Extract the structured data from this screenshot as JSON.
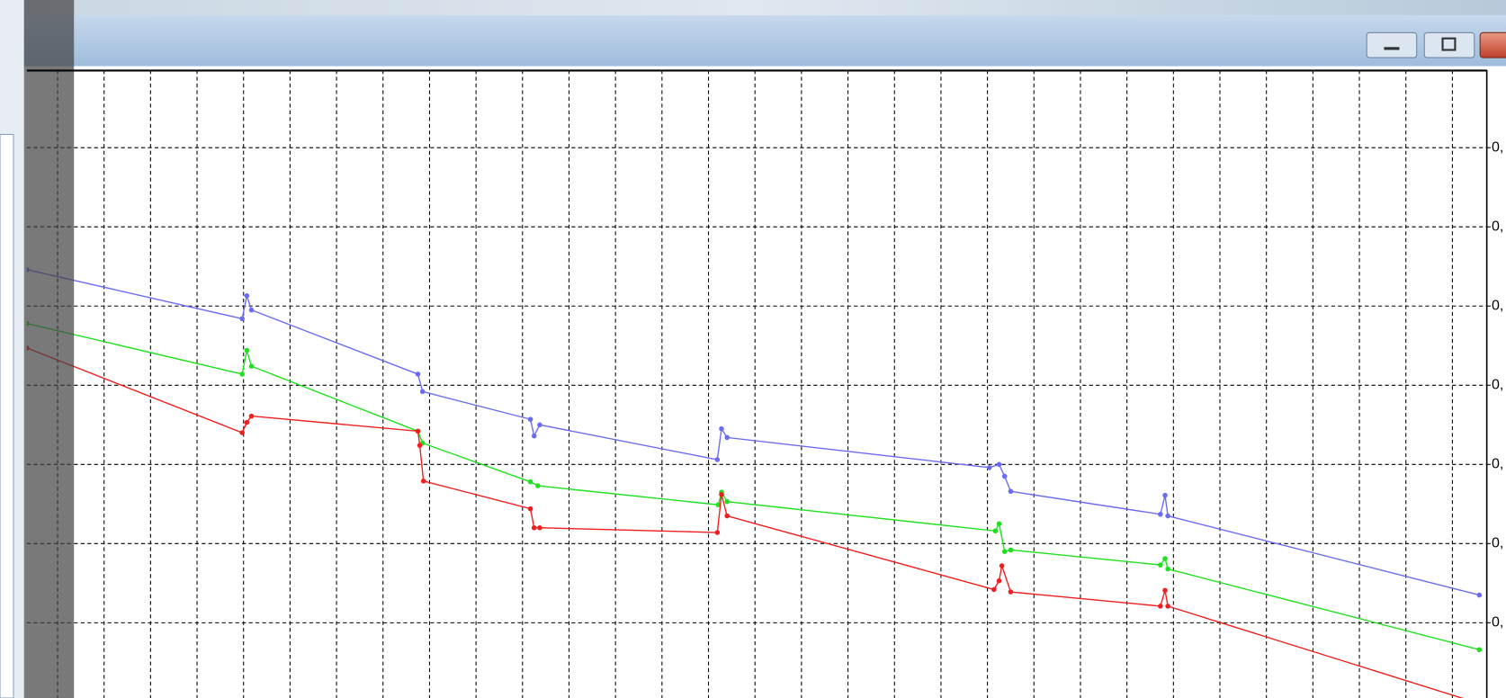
{
  "chart_data": {
    "type": "line",
    "xlim": [
      -0.66,
      30.74
    ],
    "ylim": [
      0.05,
      7.98
    ],
    "xticks": [
      0,
      1,
      2,
      3,
      4,
      5,
      6,
      7,
      8,
      9,
      10,
      11,
      12,
      13,
      14,
      15,
      16,
      17,
      18,
      19,
      20,
      21,
      22,
      23,
      24,
      25,
      26,
      27,
      28,
      29,
      30
    ],
    "yticks": [
      {
        "value": 1,
        "label": "0,"
      },
      {
        "value": 2,
        "label": "0,"
      },
      {
        "value": 3,
        "label": "0,"
      },
      {
        "value": 4,
        "label": "0,"
      },
      {
        "value": 5,
        "label": "0,"
      },
      {
        "value": 6,
        "label": "0,"
      },
      {
        "value": 7,
        "label": "0,"
      }
    ],
    "grid": true,
    "series": [
      {
        "color": "#6b6bf2",
        "x": [
          -0.66,
          3.97,
          4.07,
          4.17,
          7.75,
          7.85,
          10.17,
          10.25,
          10.37,
          14.19,
          14.28,
          14.4,
          20.04,
          20.25,
          20.37,
          20.5,
          23.72,
          23.82,
          23.88,
          30.58
        ],
        "values": [
          5.46,
          4.84,
          5.13,
          4.95,
          4.14,
          3.92,
          3.57,
          3.36,
          3.5,
          3.06,
          3.45,
          3.34,
          2.96,
          3.0,
          2.85,
          2.66,
          2.37,
          2.61,
          2.35,
          1.35
        ]
      },
      {
        "color": "#1fe01f",
        "x": [
          -0.66,
          3.97,
          4.07,
          4.17,
          7.75,
          7.85,
          10.17,
          10.33,
          14.21,
          14.28,
          14.4,
          20.17,
          20.25,
          20.37,
          20.5,
          23.72,
          23.82,
          23.88,
          30.58
        ],
        "values": [
          4.78,
          4.14,
          4.44,
          4.24,
          3.42,
          3.27,
          2.78,
          2.73,
          2.49,
          2.65,
          2.53,
          2.16,
          2.25,
          1.9,
          1.92,
          1.73,
          1.81,
          1.68,
          0.66
        ]
      },
      {
        "color": "#f01e1e",
        "x": [
          -0.66,
          3.97,
          4.07,
          4.17,
          7.75,
          7.79,
          7.87,
          10.17,
          10.25,
          10.37,
          14.19,
          14.28,
          14.4,
          20.14,
          20.25,
          20.31,
          20.5,
          23.72,
          23.82,
          23.88,
          30.58
        ],
        "values": [
          4.47,
          3.4,
          3.53,
          3.61,
          3.42,
          3.24,
          2.79,
          2.44,
          2.2,
          2.2,
          2.14,
          2.62,
          2.35,
          1.42,
          1.53,
          1.72,
          1.39,
          1.21,
          1.41,
          1.21,
          -0.02
        ]
      }
    ]
  }
}
